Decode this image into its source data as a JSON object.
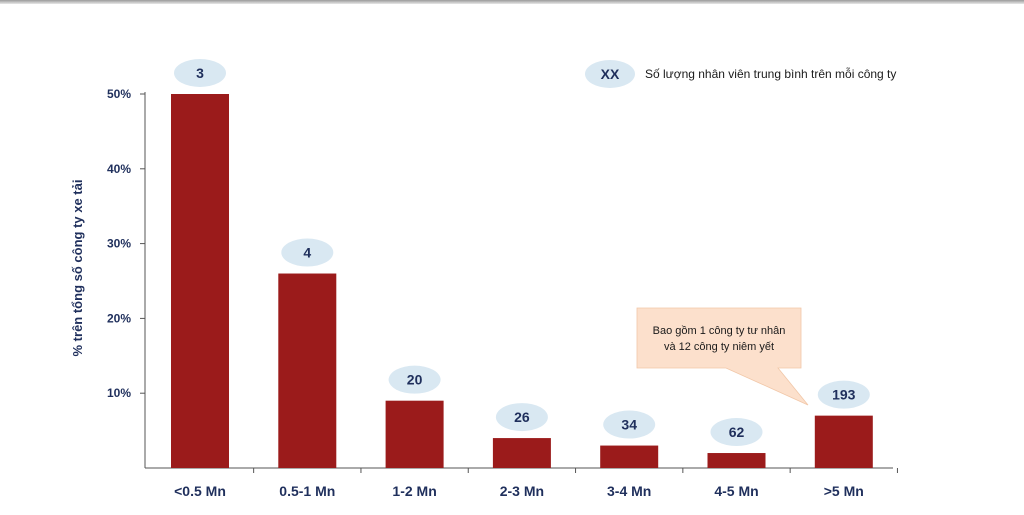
{
  "chart_data": {
    "type": "bar",
    "categories": [
      "<0.5 Mn",
      "0.5-1 Mn",
      "1-2 Mn",
      "2-3 Mn",
      "3-4 Mn",
      "4-5 Mn",
      ">5 Mn"
    ],
    "values": [
      50,
      26,
      9,
      4,
      3,
      2,
      7
    ],
    "ylabel": "% trên tổng số công ty xe tải",
    "ylim": [
      0,
      50
    ],
    "yticks": [
      "10%",
      "20%",
      "30%",
      "40%",
      "50%"
    ],
    "grid": false,
    "bar_color": "#9b1b1b",
    "bubble_labels": [
      "3",
      "4",
      "20",
      "26",
      "34",
      "62",
      "193"
    ],
    "bubble_color": "#d9e8f2",
    "legend": {
      "marker": "XX",
      "text": "Số lượng nhân viên trung bình trên mỗi công ty"
    },
    "callout": {
      "lines": [
        "Bao gồm 1 công ty tư nhân",
        "và 12 công ty niêm yết"
      ],
      "color": "#fce0cc"
    }
  }
}
